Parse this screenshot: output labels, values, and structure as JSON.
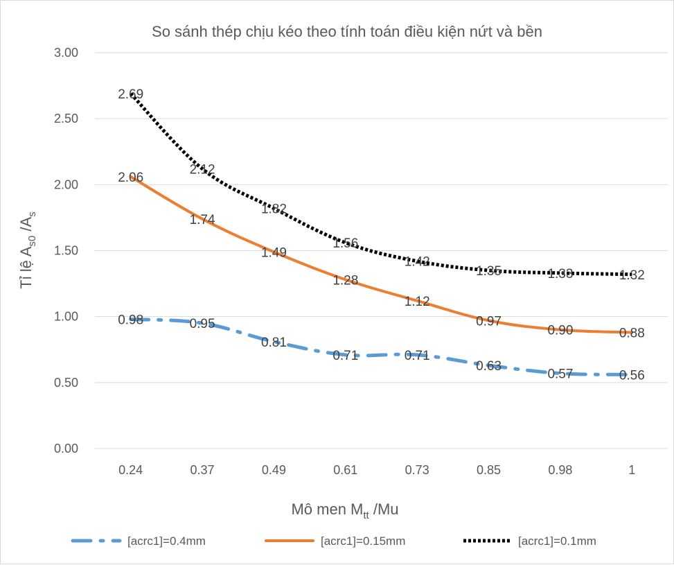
{
  "chart_data": {
    "type": "line",
    "title": "So sánh thép chịu kéo theo tính toán điều kiện nứt và bền",
    "xlabel": {
      "main": "Mô men M",
      "sub": "tt",
      "tail": " /Mu"
    },
    "ylabel": {
      "a": "Tỉ lệ A",
      "a_sub": "s0",
      "b": " /A",
      "b_sub": "s"
    },
    "categories": [
      "0.24",
      "0.37",
      "0.49",
      "0.61",
      "0.73",
      "0.85",
      "0.98",
      "1"
    ],
    "yticks": [
      "0.00",
      "0.50",
      "1.00",
      "1.50",
      "2.00",
      "2.50",
      "3.00"
    ],
    "ylim": [
      0,
      3
    ],
    "grid": true,
    "legend_position": "bottom",
    "series": [
      {
        "name": "[acrc1]=0.4mm",
        "values": [
          0.98,
          0.95,
          0.81,
          0.71,
          0.71,
          0.63,
          0.57,
          0.56
        ],
        "labels": [
          "0.98",
          "0.95",
          "0.81",
          "0.71",
          "0.71",
          "0.63",
          "0.57",
          "0.56"
        ],
        "color": "#5b9bd5",
        "style": "dash-dot"
      },
      {
        "name": "[acrc1]=0.15mm",
        "values": [
          2.06,
          1.74,
          1.49,
          1.28,
          1.12,
          0.97,
          0.9,
          0.88
        ],
        "labels": [
          "2.06",
          "1.74",
          "1.49",
          "1.28",
          "1.12",
          "0.97",
          "0.90",
          "0.88"
        ],
        "color": "#ed7d31",
        "style": "solid"
      },
      {
        "name": "[acrc1]=0.1mm",
        "values": [
          2.69,
          2.12,
          1.82,
          1.56,
          1.42,
          1.35,
          1.33,
          1.32
        ],
        "labels": [
          "2.69",
          "2.12",
          "1.82",
          "1.56",
          "1.42",
          "1.35",
          "1.33",
          "1.32"
        ],
        "color": "#000000",
        "style": "dotted"
      }
    ]
  }
}
